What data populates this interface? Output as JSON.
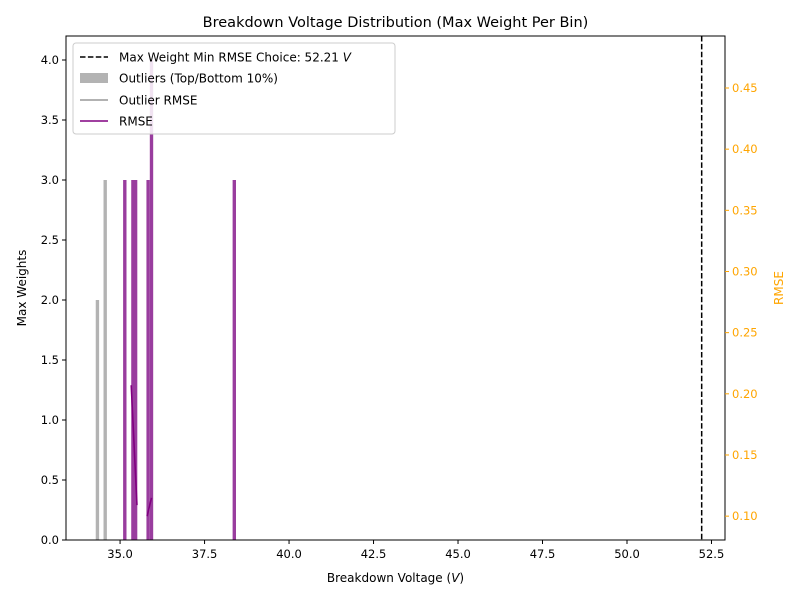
{
  "chart_data": {
    "type": "bar",
    "title": "Breakdown Voltage Distribution (Max Weight Per Bin)",
    "xlabel": "Breakdown Voltage (",
    "xlabel_unit": "V",
    "xlabel_close": ")",
    "ylabel": "Max Weights",
    "ylabel_right": "RMSE",
    "xlim": [
      33.4,
      52.9
    ],
    "ylim": [
      0,
      4.2
    ],
    "ylim_right": [
      0.0805,
      0.4925
    ],
    "x_ticks": [
      {
        "value": 35.0,
        "label": "35.0"
      },
      {
        "value": 37.5,
        "label": "37.5"
      },
      {
        "value": 40.0,
        "label": "40.0"
      },
      {
        "value": 42.5,
        "label": "42.5"
      },
      {
        "value": 45.0,
        "label": "45.0"
      },
      {
        "value": 47.5,
        "label": "47.5"
      },
      {
        "value": 50.0,
        "label": "50.0"
      },
      {
        "value": 52.5,
        "label": "52.5"
      }
    ],
    "y_ticks": [
      {
        "value": 0.0,
        "label": "0.0"
      },
      {
        "value": 0.5,
        "label": "0.5"
      },
      {
        "value": 1.0,
        "label": "1.0"
      },
      {
        "value": 1.5,
        "label": "1.5"
      },
      {
        "value": 2.0,
        "label": "2.0"
      },
      {
        "value": 2.5,
        "label": "2.5"
      },
      {
        "value": 3.0,
        "label": "3.0"
      },
      {
        "value": 3.5,
        "label": "3.5"
      },
      {
        "value": 4.0,
        "label": "4.0"
      }
    ],
    "y_right_ticks": [
      {
        "value": 0.1,
        "label": "0.10"
      },
      {
        "value": 0.15,
        "label": "0.15"
      },
      {
        "value": 0.2,
        "label": "0.20"
      },
      {
        "value": 0.25,
        "label": "0.25"
      },
      {
        "value": 0.3,
        "label": "0.30"
      },
      {
        "value": 0.35,
        "label": "0.35"
      },
      {
        "value": 0.4,
        "label": "0.40"
      },
      {
        "value": 0.45,
        "label": "0.45"
      }
    ],
    "bar_width": 0.1,
    "outlier_bars": [
      {
        "x": 34.33,
        "y": 2
      },
      {
        "x": 34.56,
        "y": 3
      }
    ],
    "main_bars": [
      {
        "x": 35.14,
        "y": 3
      },
      {
        "x": 35.38,
        "y": 3
      },
      {
        "x": 35.46,
        "y": 3
      },
      {
        "x": 35.83,
        "y": 3
      },
      {
        "x": 35.93,
        "y": 4
      },
      {
        "x": 38.38,
        "y": 3
      }
    ],
    "rmse_series": [
      [
        [
          35.33,
          0.207
        ],
        [
          35.5,
          0.109
        ]
      ],
      [
        [
          35.8,
          0.1
        ],
        [
          35.93,
          0.115
        ]
      ]
    ],
    "vline": {
      "x": 52.21,
      "label_prefix": "Max Weight Min RMSE Choice: 52.21 ",
      "label_unit": "V"
    },
    "legend": {
      "position": "top-left",
      "entries": [
        {
          "label": "Outliers (Top/Bottom 10%)"
        },
        {
          "label": "Outlier RMSE"
        },
        {
          "label": "RMSE"
        }
      ]
    },
    "colors": {
      "main_bar": "#993d9e",
      "outlier_bar": "#b3b3b3",
      "rmse_line": "#800080",
      "outlier_rmse_line": "#999999",
      "vline": "#000000",
      "right_axis": "#ffa500"
    }
  }
}
